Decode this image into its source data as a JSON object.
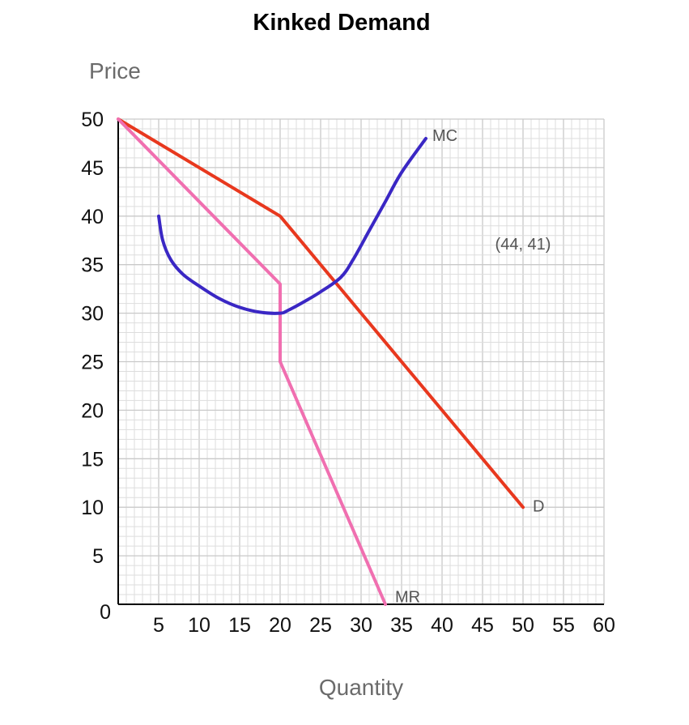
{
  "chart_data": {
    "type": "line",
    "title": "Kinked Demand",
    "xlabel": "Quantity",
    "ylabel": "Price",
    "xlim": [
      0,
      60
    ],
    "ylim": [
      0,
      50
    ],
    "x_ticks": [
      5,
      10,
      15,
      20,
      25,
      30,
      35,
      40,
      45,
      50,
      55,
      60
    ],
    "y_ticks": [
      0,
      5,
      10,
      15,
      20,
      25,
      30,
      35,
      40,
      45,
      50
    ],
    "grid": true,
    "minor_grid_step": 1,
    "series": [
      {
        "name": "D",
        "color": "#e8381e",
        "points": [
          [
            0,
            50
          ],
          [
            20,
            40
          ],
          [
            50,
            10
          ]
        ]
      },
      {
        "name": "MR",
        "color": "#f06fb0",
        "points": [
          [
            0,
            50
          ],
          [
            20,
            33
          ],
          [
            20,
            25
          ],
          [
            33,
            0
          ]
        ]
      },
      {
        "name": "MC",
        "color": "#3a27c4",
        "points": [
          [
            5,
            40
          ],
          [
            5.5,
            37.5
          ],
          [
            6.5,
            35.5
          ],
          [
            8,
            34
          ],
          [
            10,
            32.8
          ],
          [
            12.5,
            31.5
          ],
          [
            15,
            30.6
          ],
          [
            17.5,
            30.1
          ],
          [
            20,
            30
          ],
          [
            21,
            30.3
          ],
          [
            23,
            31.2
          ],
          [
            25,
            32.2
          ],
          [
            27.5,
            33.7
          ],
          [
            29,
            35.5
          ],
          [
            31,
            38.5
          ],
          [
            33,
            41.5
          ],
          [
            35,
            44.5
          ],
          [
            38,
            48
          ]
        ]
      }
    ],
    "annotations": [
      {
        "text": "(44, 41)",
        "x": 50,
        "y": 37
      }
    ]
  }
}
